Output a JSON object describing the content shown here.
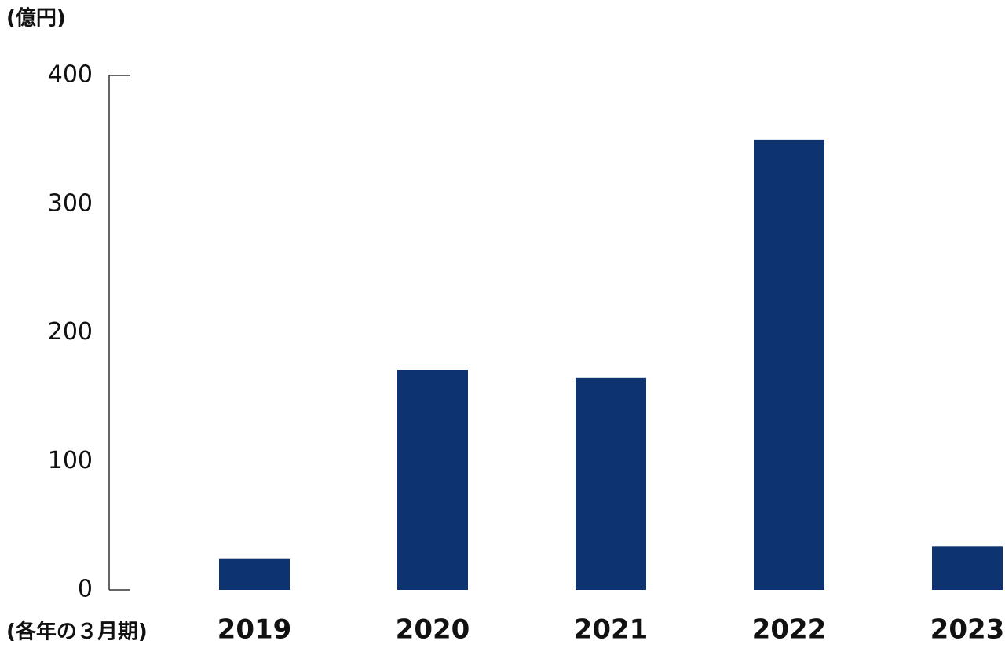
{
  "chart_data": {
    "type": "bar",
    "y_label": "(億円)",
    "x_label": "(各年の３月期)",
    "categories": [
      "2019",
      "2020",
      "2021",
      "2022",
      "2023"
    ],
    "values": [
      24,
      171,
      165,
      350,
      34
    ],
    "color": "#0d3370",
    "ylim": [
      0,
      400
    ],
    "yticks": [
      0,
      100,
      200,
      300,
      400
    ],
    "grid": false
  }
}
